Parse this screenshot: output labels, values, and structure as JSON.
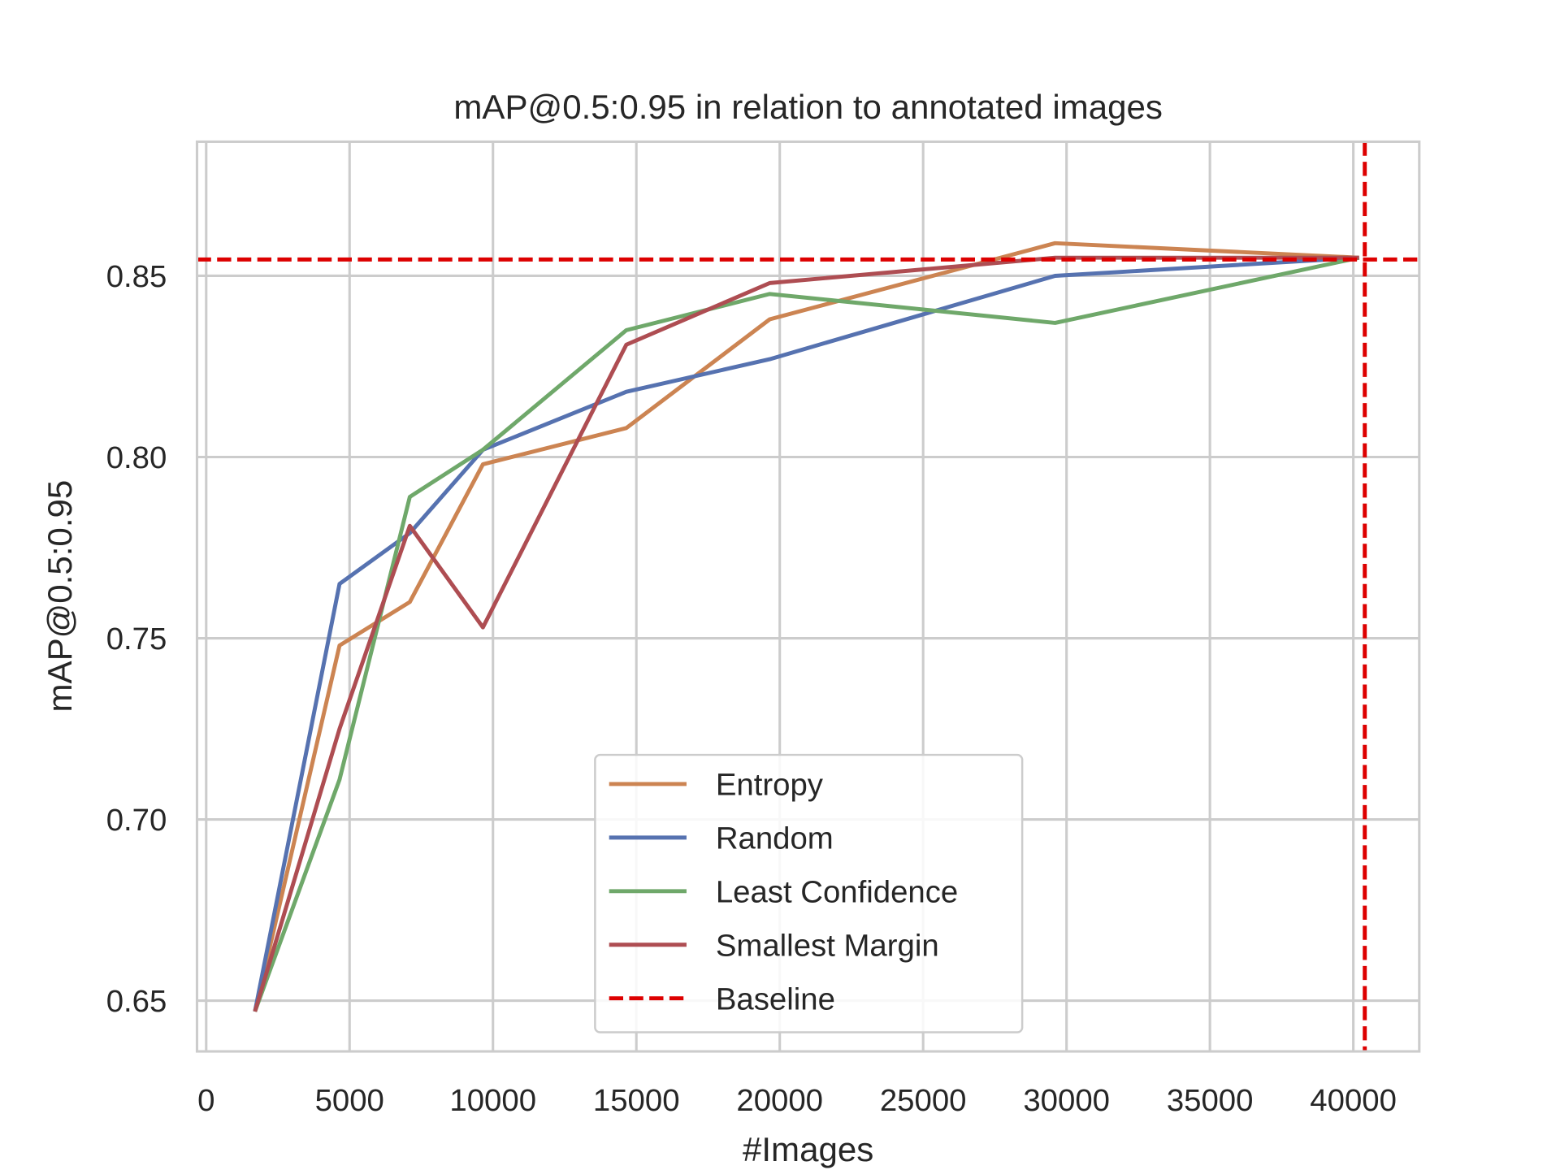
{
  "chart_data": {
    "type": "line",
    "title": "mAP@0.5:0.95 in relation to annotated images",
    "xlabel": "#Images",
    "ylabel": "mAP@0.5:0.95",
    "xlim": [
      -320,
      42300
    ],
    "ylim": [
      0.636,
      0.887
    ],
    "xticks": [
      0,
      5000,
      10000,
      15000,
      20000,
      25000,
      30000,
      35000,
      40000
    ],
    "xtick_labels": [
      "0",
      "5000",
      "10000",
      "15000",
      "20000",
      "25000",
      "30000",
      "35000",
      "40000"
    ],
    "yticks": [
      0.65,
      0.7,
      0.75,
      0.8,
      0.85
    ],
    "ytick_labels": [
      "0.65",
      "0.70",
      "0.75",
      "0.80",
      "0.85"
    ],
    "grid": true,
    "legend_position": "lower-center",
    "x": [
      1700,
      4650,
      7100,
      9650,
      14650,
      19650,
      29600,
      40200
    ],
    "series": [
      {
        "name": "Entropy",
        "color": "#cc8452",
        "values": [
          0.647,
          0.748,
          0.76,
          0.798,
          0.808,
          0.838,
          0.859,
          0.855
        ]
      },
      {
        "name": "Random",
        "color": "#5672b0",
        "values": [
          0.647,
          0.765,
          0.779,
          0.802,
          0.818,
          0.827,
          0.85,
          0.855
        ]
      },
      {
        "name": "Least Confidence",
        "color": "#6fa86a",
        "values": [
          0.647,
          0.711,
          0.789,
          0.802,
          0.835,
          0.845,
          0.837,
          0.855
        ]
      },
      {
        "name": "Smallest Margin",
        "color": "#ae4d52",
        "values": [
          0.647,
          0.725,
          0.781,
          0.753,
          0.831,
          0.848,
          0.855,
          0.855
        ]
      }
    ],
    "baseline": {
      "name": "Baseline",
      "color": "#dd0000",
      "y": 0.8545,
      "x": 40400,
      "style": "dashed"
    }
  }
}
